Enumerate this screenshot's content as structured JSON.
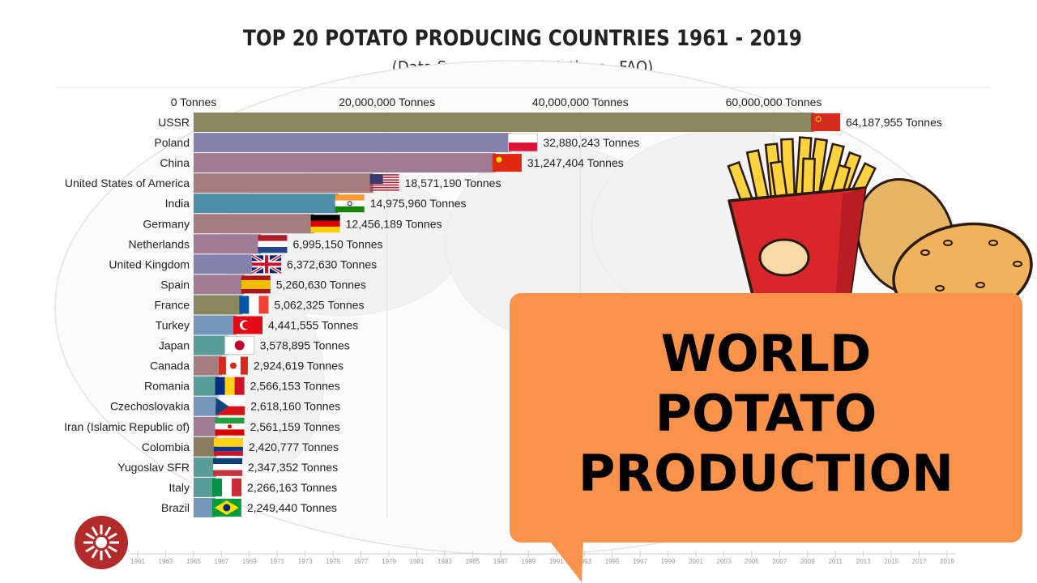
{
  "header": {
    "title": "TOP 20 POTATO PRODUCING COUNTRIES 1961 - 2019",
    "subtitle": "(Data Source: United Nations - FAO)"
  },
  "callout": {
    "lines": [
      "WORLD",
      "POTATO",
      "PRODUCTION"
    ],
    "background": "#fa924b"
  },
  "chart_data": {
    "type": "bar",
    "orientation": "horizontal",
    "unit": "Tonnes",
    "axis_ticks": [
      "0 Tonnes",
      "20,000,000 Tonnes",
      "40,000,000 Tonnes",
      "60,000,000 Tonnes"
    ],
    "tick_values": [
      0,
      20000000,
      40000000,
      60000000
    ],
    "xlim": [
      0,
      65000000
    ],
    "categories": [
      "USSR",
      "Poland",
      "China",
      "United States of America",
      "India",
      "Germany",
      "Netherlands",
      "United Kingdom",
      "Spain",
      "France",
      "Turkey",
      "Japan",
      "Canada",
      "Romania",
      "Czechoslovakia",
      "Iran (Islamic Republic of)",
      "Colombia",
      "Yugoslav SFR",
      "Italy",
      "Brazil"
    ],
    "values": [
      64187955,
      32880243,
      31247404,
      18571190,
      14975960,
      12456189,
      6995150,
      6372630,
      5260630,
      5062325,
      4441555,
      3578895,
      2924619,
      2566153,
      2618160,
      2561159,
      2420777,
      2347352,
      2266163,
      2249440
    ],
    "value_labels": [
      "64,187,955 Tonnes",
      "32,880,243 Tonnes",
      "31,247,404 Tonnes",
      "18,571,190 Tonnes",
      "14,975,960 Tonnes",
      "12,456,189 Tonnes",
      "6,995,150 Tonnes",
      "6,372,630 Tonnes",
      "5,260,630 Tonnes",
      "5,062,325 Tonnes",
      "4,441,555 Tonnes",
      "3,578,895 Tonnes",
      "2,924,619 Tonnes",
      "2,566,153 Tonnes",
      "2,618,160 Tonnes",
      "2,561,159 Tonnes",
      "2,420,777 Tonnes",
      "2,347,352 Tonnes",
      "2,266,163 Tonnes",
      "2,249,440 Tonnes"
    ],
    "bar_colors": [
      "#8a8660",
      "#8582ad",
      "#a07b96",
      "#a57d7f",
      "#4e8ea7",
      "#a57d7f",
      "#a07b96",
      "#8582ad",
      "#a07b96",
      "#8a8660",
      "#7596ba",
      "#5a9c98",
      "#a57d7f",
      "#5a9c98",
      "#7596ba",
      "#a07b96",
      "#8a7d62",
      "#5a9c98",
      "#5a9c98",
      "#7596ba"
    ],
    "timeline_years": [
      "1961",
      "1963",
      "1965",
      "1967",
      "1969",
      "1971",
      "1973",
      "1975",
      "1977",
      "1979",
      "1981",
      "1983",
      "1985",
      "1987",
      "1989",
      "1991",
      "1993",
      "1995",
      "1997",
      "1999",
      "2001",
      "2003",
      "2005",
      "2007",
      "2009",
      "2011",
      "2013",
      "2015",
      "2017",
      "2019"
    ]
  }
}
